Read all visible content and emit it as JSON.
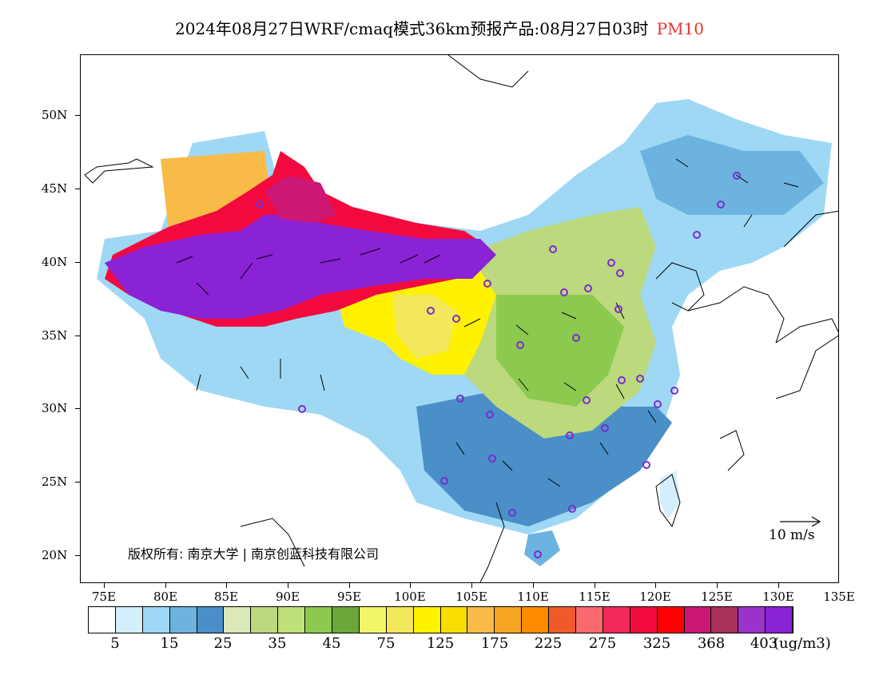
{
  "title": {
    "main": "2024年08月27日WRF/cmaq模式36km预报产品:08月27日03时",
    "product": "PM10"
  },
  "axes": {
    "lat_labels": [
      "50N",
      "45N",
      "40N",
      "35N",
      "30N",
      "25N",
      "20N"
    ],
    "lon_labels": [
      "75E",
      "80E",
      "85E",
      "90E",
      "95E",
      "100E",
      "105E",
      "110E",
      "115E",
      "120E",
      "125E",
      "130E",
      "135E"
    ]
  },
  "colorbar": {
    "colors": [
      "#ffffff",
      "#d4eefb",
      "#9fd8f4",
      "#6cb3e0",
      "#4a8fc7",
      "#dbe9b6",
      "#bcd97d",
      "#c0e07a",
      "#8cc94f",
      "#6aa83a",
      "#f2f56a",
      "#f3e75c",
      "#fff200",
      "#f8de00",
      "#f8bb47",
      "#f6a523",
      "#fb8c00",
      "#f05a2b",
      "#f96a6f",
      "#f2295a",
      "#f20a3e",
      "#ff0000",
      "#cc1774",
      "#a8305b",
      "#9933cc",
      "#8a22d6"
    ],
    "labels": [
      "5",
      "15",
      "25",
      "35",
      "45",
      "75",
      "125",
      "175",
      "225",
      "275",
      "325",
      "368",
      "403"
    ],
    "unit": "(ug/m3)"
  },
  "copyright": "版权所有: 南京大学 | 南京创蓝科技有限公司",
  "wind_scale_label": "10 m/s",
  "map_extent": {
    "lon": [
      73,
      135
    ],
    "lat": [
      18,
      54
    ]
  }
}
